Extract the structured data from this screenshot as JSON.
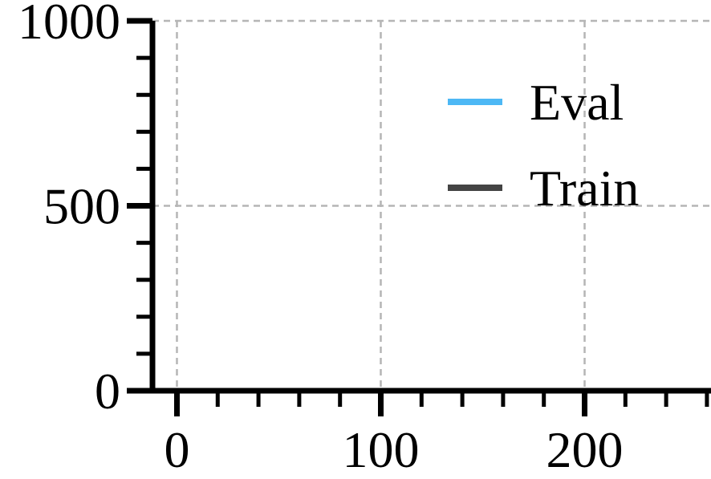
{
  "chart_data": {
    "type": "line",
    "title": "",
    "xlabel": "",
    "ylabel": "",
    "xlim": [
      -12,
      262
    ],
    "ylim": [
      0,
      1000
    ],
    "x_ticks": [
      0,
      100,
      200
    ],
    "x_tick_labels": [
      "0",
      "100",
      "200"
    ],
    "x_minor_step": 20,
    "y_ticks": [
      0,
      500,
      1000
    ],
    "y_tick_labels": [
      "0",
      "500",
      "1000"
    ],
    "y_minor_step": 100,
    "grid": true,
    "legend_position": "upper-right",
    "series": [
      {
        "name": "Eval",
        "color": "#4db8f5",
        "x": [],
        "y": []
      },
      {
        "name": "Train",
        "color": "#444444",
        "x": [],
        "y": []
      }
    ]
  }
}
